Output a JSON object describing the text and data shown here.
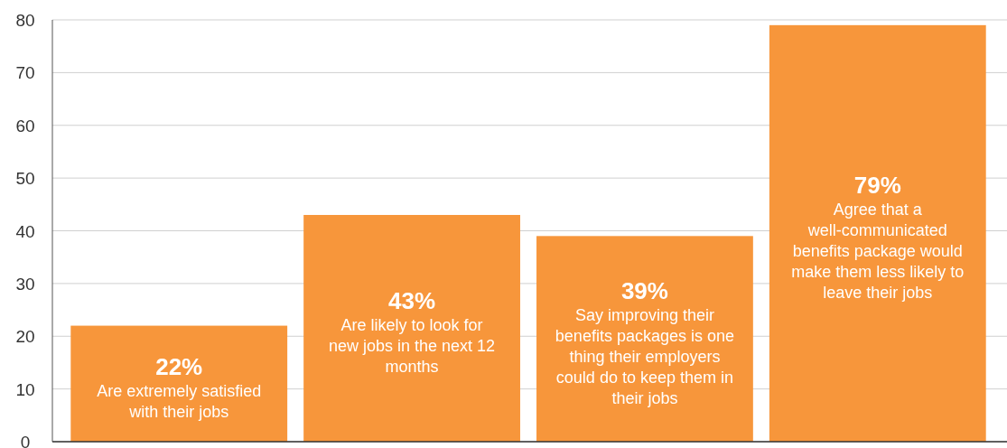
{
  "chart_data": {
    "type": "bar",
    "categories": [
      "Are extremely satisfied with their jobs",
      "Are likely to look for new jobs in the next 12 months",
      "Say improving their benefits packages is one thing their employers could do to keep them in their jobs",
      "Agree that a well-communicated benefits package would make them less likely to leave their jobs"
    ],
    "values": [
      22,
      43,
      39,
      79
    ],
    "value_labels": [
      "22%",
      "43%",
      "39%",
      "79%"
    ],
    "color": "#f7963b",
    "ylim": [
      0,
      80
    ],
    "yticks": [
      0,
      10,
      20,
      30,
      40,
      50,
      60,
      70,
      80
    ],
    "grid": "y"
  }
}
